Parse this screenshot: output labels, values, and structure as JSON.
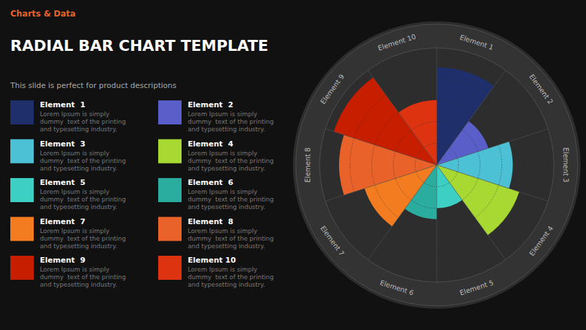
{
  "chart_data": {
    "type": "radial_bar",
    "supertitle": "Charts & Data",
    "title": "RADIAL BAR CHART TEMPLATE",
    "subtitle": "This slide is perfect for product descriptions",
    "categories": [
      "Element  1",
      "Element  2",
      "Element  3",
      "Element  4",
      "Element  5",
      "Element  6",
      "Element  7",
      "Element  8",
      "Element  9",
      "Element 10"
    ],
    "ring_labels": [
      "Element 1",
      "Element 2",
      "Element 3",
      "Element 4",
      "Element 5",
      "Element 6",
      "Element 7",
      "Element 8",
      "Element 9",
      "Element 10"
    ],
    "values": [
      9,
      5,
      7,
      8,
      4,
      5,
      7,
      9,
      10,
      6
    ],
    "colors": [
      "#1e2f6b",
      "#5a5ec9",
      "#4cc0d4",
      "#a8d832",
      "#3ecfc4",
      "#2aad9e",
      "#f47c20",
      "#e8622a",
      "#c81e00",
      "#dd3311"
    ],
    "legend_note": "Lorem Ipsum is simply\ndummy  text of the printing\nand typesetting industry.",
    "ylim": [
      0,
      10
    ],
    "yticks": [
      2,
      4,
      6,
      8,
      10
    ],
    "grid": true,
    "tick_labels": false,
    "legend": "left"
  }
}
